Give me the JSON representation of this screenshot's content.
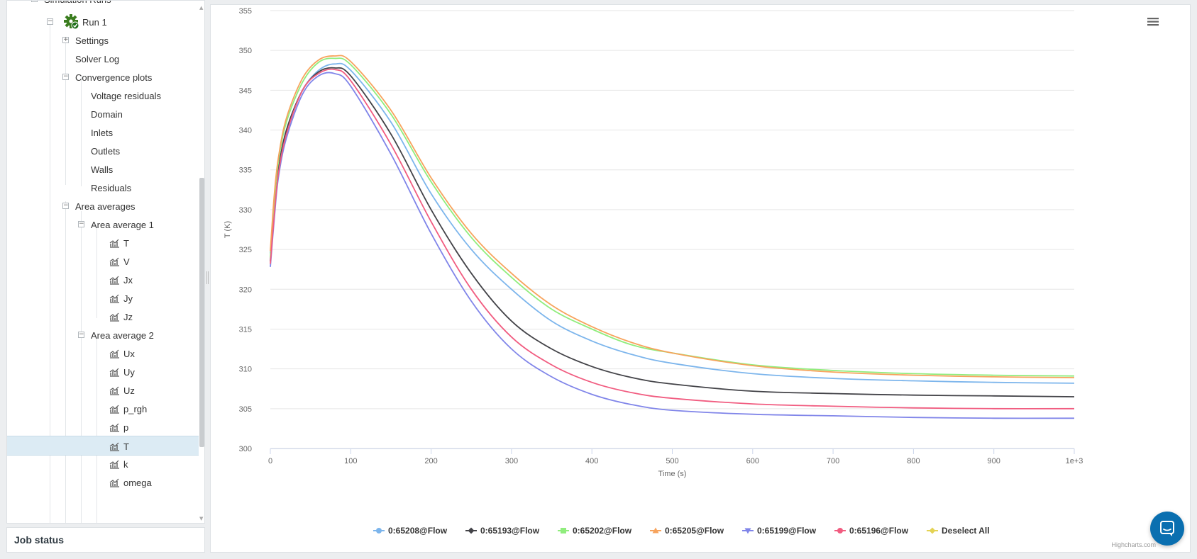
{
  "sidebar": {
    "top_cut_label": "Simulation Runs",
    "items": [
      {
        "label": "Run 1",
        "toggle": "−",
        "icon": "gear-check-icon"
      },
      {
        "label": "Settings",
        "toggle": "+"
      },
      {
        "label": "Solver Log"
      },
      {
        "label": "Convergence plots",
        "toggle": "−"
      },
      {
        "label": "Voltage residuals"
      },
      {
        "label": "Domain"
      },
      {
        "label": "Inlets"
      },
      {
        "label": "Outlets"
      },
      {
        "label": "Walls"
      },
      {
        "label": "Residuals"
      },
      {
        "label": "Area averages",
        "toggle": "−"
      },
      {
        "label": "Area average 1",
        "toggle": "−"
      },
      {
        "label": "T",
        "icon": "line-chart-icon"
      },
      {
        "label": "V",
        "icon": "line-chart-icon"
      },
      {
        "label": "Jx",
        "icon": "line-chart-icon"
      },
      {
        "label": "Jy",
        "icon": "line-chart-icon"
      },
      {
        "label": "Jz",
        "icon": "line-chart-icon"
      },
      {
        "label": "Area average 2",
        "toggle": "−"
      },
      {
        "label": "Ux",
        "icon": "line-chart-icon"
      },
      {
        "label": "Uy",
        "icon": "line-chart-icon"
      },
      {
        "label": "Uz",
        "icon": "line-chart-icon"
      },
      {
        "label": "p_rgh",
        "icon": "line-chart-icon"
      },
      {
        "label": "p",
        "icon": "line-chart-icon"
      },
      {
        "label": "T",
        "icon": "line-chart-icon",
        "selected": true
      },
      {
        "label": "k",
        "icon": "line-chart-icon"
      },
      {
        "label": "omega",
        "icon": "line-chart-icon"
      }
    ]
  },
  "job_status": {
    "label": "Job status"
  },
  "chart_data": {
    "type": "line",
    "title": "",
    "xlabel": "Time (s)",
    "ylabel": "T (K)",
    "xlim": [
      0,
      1000
    ],
    "ylim": [
      300,
      355
    ],
    "x_ticks": [
      "0",
      "100",
      "200",
      "300",
      "400",
      "500",
      "600",
      "700",
      "800",
      "900",
      "1e+3"
    ],
    "y_ticks": [
      "300",
      "305",
      "310",
      "315",
      "320",
      "325",
      "330",
      "335",
      "340",
      "345",
      "350",
      "355"
    ],
    "grid": "horizontal",
    "legend_position": "bottom-center",
    "series": [
      {
        "name": "0:65208@Flow",
        "color": "#7cb5ec",
        "marker": "circle",
        "x": [
          0,
          5,
          10,
          20,
          40,
          60,
          80,
          100,
          150,
          200,
          250,
          300,
          350,
          400,
          450,
          500,
          600,
          700,
          800,
          900,
          1000
        ],
        "y": [
          324.5,
          330,
          335,
          340,
          345,
          347.5,
          348.3,
          347.5,
          341,
          332,
          325,
          320,
          316,
          313.5,
          311.8,
          310.7,
          309.4,
          308.8,
          308.5,
          308.3,
          308.2
        ]
      },
      {
        "name": "0:65193@Flow",
        "color": "#434348",
        "marker": "diamond",
        "x": [
          0,
          5,
          10,
          20,
          40,
          60,
          80,
          100,
          150,
          200,
          250,
          300,
          350,
          400,
          450,
          500,
          600,
          700,
          800,
          900,
          1000
        ],
        "y": [
          323.5,
          330,
          335,
          340,
          345,
          347.3,
          347.8,
          346.8,
          339.5,
          330,
          322,
          316,
          312.5,
          310.3,
          308.9,
          308.1,
          307.2,
          306.9,
          306.7,
          306.6,
          306.5
        ]
      },
      {
        "name": "0:65202@Flow",
        "color": "#90ed7d",
        "marker": "square",
        "x": [
          0,
          5,
          10,
          20,
          40,
          60,
          80,
          100,
          150,
          200,
          250,
          300,
          350,
          400,
          450,
          500,
          600,
          700,
          800,
          900,
          1000
        ],
        "y": [
          324,
          331,
          336,
          341,
          346,
          348.5,
          349.0,
          348.2,
          342,
          333.5,
          326.5,
          321.5,
          317.5,
          315,
          313,
          312,
          310.5,
          309.8,
          309.4,
          309.2,
          309.1
        ]
      },
      {
        "name": "0:65205@Flow",
        "color": "#f7a35c",
        "marker": "triangle",
        "x": [
          0,
          5,
          10,
          20,
          40,
          60,
          80,
          100,
          150,
          200,
          250,
          300,
          350,
          400,
          450,
          500,
          600,
          700,
          800,
          900,
          1000
        ],
        "y": [
          324.8,
          332,
          336.5,
          341.5,
          346.5,
          348.8,
          349.3,
          348.6,
          342.5,
          334,
          327,
          322,
          318,
          315.3,
          313.3,
          312,
          310.4,
          309.6,
          309.2,
          309,
          308.9
        ]
      },
      {
        "name": "0:65199@Flow",
        "color": "#8085e9",
        "marker": "triangle-down",
        "x": [
          0,
          5,
          10,
          20,
          40,
          60,
          80,
          100,
          150,
          200,
          250,
          300,
          350,
          400,
          450,
          500,
          600,
          700,
          800,
          900,
          1000
        ],
        "y": [
          322.8,
          329,
          334,
          339,
          344.5,
          346.8,
          347.1,
          345.5,
          337,
          327,
          318.5,
          312.5,
          309,
          306.8,
          305.5,
          304.8,
          304.3,
          304.1,
          303.9,
          303.8,
          303.8
        ]
      },
      {
        "name": "0:65196@Flow",
        "color": "#f15c80",
        "marker": "circle",
        "x": [
          0,
          5,
          10,
          20,
          40,
          60,
          80,
          100,
          150,
          200,
          250,
          300,
          350,
          400,
          450,
          500,
          600,
          700,
          800,
          900,
          1000
        ],
        "y": [
          323.2,
          329.5,
          334.5,
          339.5,
          345,
          347.1,
          347.6,
          346.2,
          338.2,
          328.5,
          320,
          314,
          310.5,
          308.3,
          307,
          306.3,
          305.6,
          305.3,
          305.1,
          305.0,
          305.0
        ]
      }
    ],
    "legend_extra": {
      "name": "Deselect All",
      "color": "#e4d354",
      "marker": "diamond"
    },
    "credit": "Highcharts.com"
  }
}
